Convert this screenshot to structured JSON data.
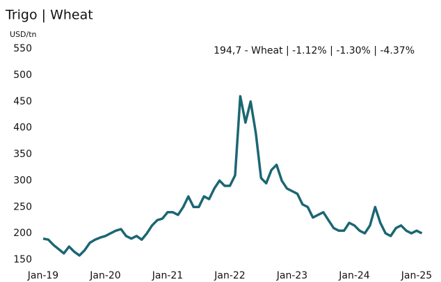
{
  "chart_data": {
    "type": "line",
    "title": "Trigo | Wheat",
    "y_label": "USD/tn",
    "annotation": "194,7 - Wheat | -1.12% | -1.30% | -4.37%",
    "x": [
      "2019-01",
      "2019-02",
      "2019-03",
      "2019-04",
      "2019-05",
      "2019-06",
      "2019-07",
      "2019-08",
      "2019-09",
      "2019-10",
      "2019-11",
      "2019-12",
      "2020-01",
      "2020-02",
      "2020-03",
      "2020-04",
      "2020-05",
      "2020-06",
      "2020-07",
      "2020-08",
      "2020-09",
      "2020-10",
      "2020-11",
      "2020-12",
      "2021-01",
      "2021-02",
      "2021-03",
      "2021-04",
      "2021-05",
      "2021-06",
      "2021-07",
      "2021-08",
      "2021-09",
      "2021-10",
      "2021-11",
      "2021-12",
      "2022-01",
      "2022-02",
      "2022-03",
      "2022-04",
      "2022-05",
      "2022-06",
      "2022-07",
      "2022-08",
      "2022-09",
      "2022-10",
      "2022-11",
      "2022-12",
      "2023-01",
      "2023-02",
      "2023-03",
      "2023-04",
      "2023-05",
      "2023-06",
      "2023-07",
      "2023-08",
      "2023-09",
      "2023-10",
      "2023-11",
      "2023-12",
      "2024-01",
      "2024-02",
      "2024-03",
      "2024-04",
      "2024-05",
      "2024-06",
      "2024-07",
      "2024-08",
      "2024-09",
      "2024-10",
      "2024-11",
      "2024-12",
      "2025-01",
      "2025-02"
    ],
    "series": [
      {
        "name": "Wheat",
        "color": "#1b6673",
        "values": [
          190,
          188,
          178,
          170,
          162,
          175,
          165,
          158,
          168,
          182,
          188,
          192,
          195,
          200,
          205,
          208,
          195,
          190,
          195,
          188,
          200,
          215,
          225,
          228,
          240,
          240,
          235,
          250,
          270,
          250,
          250,
          270,
          265,
          285,
          300,
          290,
          290,
          310,
          460,
          410,
          450,
          390,
          305,
          295,
          320,
          330,
          300,
          285,
          280,
          275,
          255,
          250,
          230,
          235,
          240,
          225,
          210,
          205,
          205,
          220,
          215,
          205,
          200,
          215,
          250,
          220,
          200,
          195,
          210,
          215,
          205,
          200,
          205,
          200
        ]
      }
    ],
    "ylim": [
      150,
      550
    ],
    "yticks": [
      150,
      200,
      250,
      300,
      350,
      400,
      450,
      500,
      550
    ],
    "xticks": [
      {
        "value": "2019-01",
        "label": "Jan-19"
      },
      {
        "value": "2020-01",
        "label": "Jan-20"
      },
      {
        "value": "2021-01",
        "label": "Jan-21"
      },
      {
        "value": "2022-01",
        "label": "Jan-22"
      },
      {
        "value": "2023-01",
        "label": "Jan-23"
      },
      {
        "value": "2024-01",
        "label": "Jan-24"
      },
      {
        "value": "2025-01",
        "label": "Jan-25"
      }
    ],
    "grid": false
  }
}
